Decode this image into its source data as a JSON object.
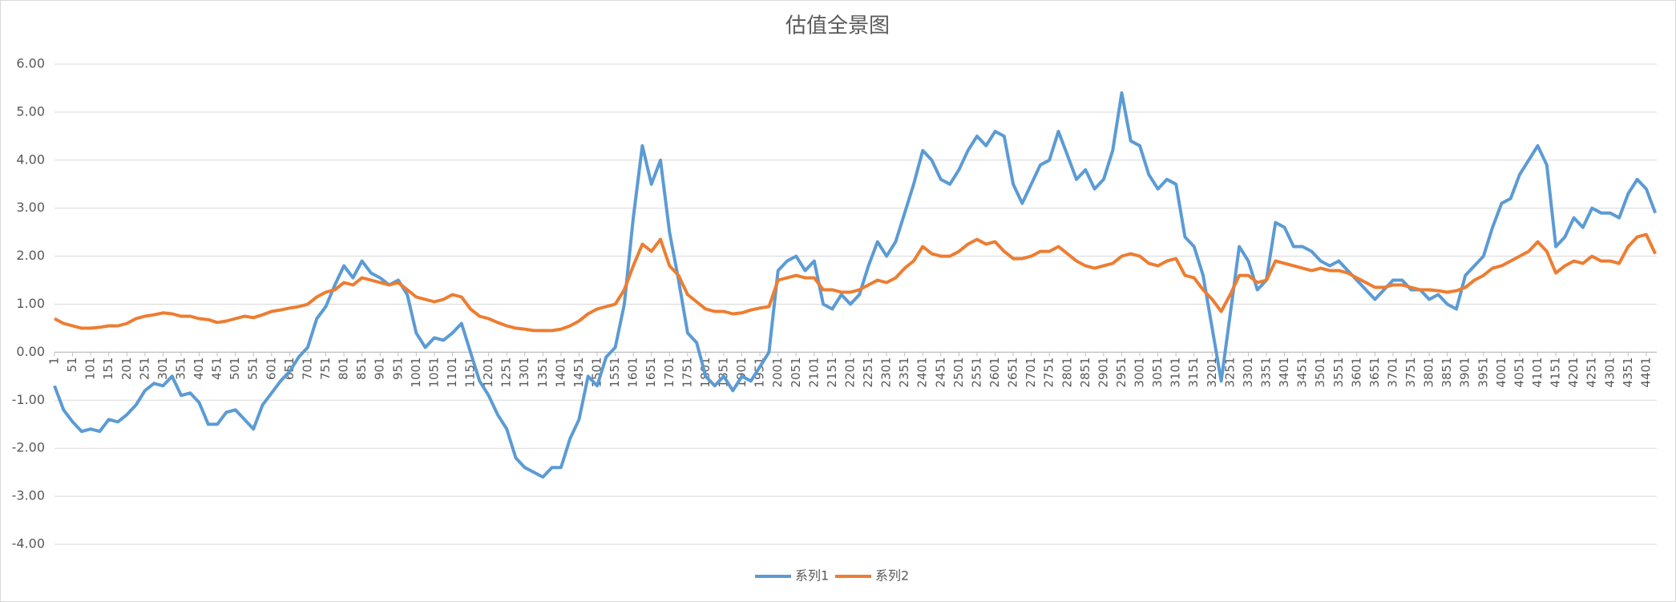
{
  "chart_data": {
    "type": "line",
    "title": "估值全景图",
    "x": [
      1,
      26,
      51,
      76,
      101,
      126,
      151,
      176,
      201,
      226,
      251,
      276,
      301,
      326,
      351,
      376,
      401,
      426,
      451,
      476,
      501,
      526,
      551,
      576,
      601,
      626,
      651,
      676,
      701,
      726,
      751,
      776,
      801,
      826,
      851,
      876,
      901,
      926,
      951,
      976,
      1001,
      1026,
      1051,
      1076,
      1101,
      1126,
      1151,
      1176,
      1201,
      1226,
      1251,
      1276,
      1301,
      1326,
      1351,
      1376,
      1401,
      1426,
      1451,
      1476,
      1501,
      1526,
      1551,
      1576,
      1601,
      1626,
      1651,
      1676,
      1701,
      1726,
      1751,
      1776,
      1801,
      1826,
      1851,
      1876,
      1901,
      1926,
      1951,
      1976,
      2001,
      2026,
      2051,
      2076,
      2101,
      2126,
      2151,
      2176,
      2201,
      2226,
      2251,
      2276,
      2301,
      2326,
      2351,
      2376,
      2401,
      2426,
      2451,
      2476,
      2501,
      2526,
      2551,
      2576,
      2601,
      2626,
      2651,
      2676,
      2701,
      2726,
      2751,
      2776,
      2801,
      2826,
      2851,
      2876,
      2901,
      2926,
      2951,
      2976,
      3001,
      3026,
      3051,
      3076,
      3101,
      3126,
      3151,
      3176,
      3201,
      3226,
      3251,
      3276,
      3301,
      3326,
      3351,
      3376,
      3401,
      3426,
      3451,
      3476,
      3501,
      3526,
      3551,
      3576,
      3601,
      3626,
      3651,
      3676,
      3701,
      3726,
      3751,
      3776,
      3801,
      3826,
      3851,
      3876,
      3901,
      3926,
      3951,
      3976,
      4001,
      4026,
      4051,
      4076,
      4101,
      4126,
      4151,
      4176,
      4201,
      4226,
      4251,
      4276,
      4301,
      4326,
      4351,
      4376,
      4401,
      4426
    ],
    "series": [
      {
        "name": "系列1",
        "color": "#5b9bd5",
        "values": [
          -0.7,
          -1.2,
          -1.45,
          -1.65,
          -1.6,
          -1.65,
          -1.4,
          -1.45,
          -1.3,
          -1.1,
          -0.8,
          -0.65,
          -0.7,
          -0.5,
          -0.9,
          -0.85,
          -1.05,
          -1.5,
          -1.5,
          -1.25,
          -1.2,
          -1.4,
          -1.6,
          -1.1,
          -0.85,
          -0.6,
          -0.4,
          -0.1,
          0.1,
          0.7,
          0.95,
          1.4,
          1.8,
          1.55,
          1.9,
          1.65,
          1.55,
          1.4,
          1.5,
          1.2,
          0.4,
          0.1,
          0.3,
          0.25,
          0.4,
          0.6,
          0.0,
          -0.6,
          -0.9,
          -1.3,
          -1.6,
          -2.2,
          -2.4,
          -2.5,
          -2.6,
          -2.4,
          -2.4,
          -1.8,
          -1.4,
          -0.5,
          -0.7,
          -0.1,
          0.1,
          1.0,
          2.8,
          4.3,
          3.5,
          4.0,
          2.5,
          1.5,
          0.4,
          0.2,
          -0.5,
          -0.7,
          -0.5,
          -0.8,
          -0.5,
          -0.6,
          -0.3,
          0.0,
          1.7,
          1.9,
          2.0,
          1.7,
          1.9,
          1.0,
          0.9,
          1.2,
          1.0,
          1.2,
          1.8,
          2.3,
          2.0,
          2.3,
          2.9,
          3.5,
          4.2,
          4.0,
          3.6,
          3.5,
          3.8,
          4.2,
          4.5,
          4.3,
          4.6,
          4.5,
          3.5,
          3.1,
          3.5,
          3.9,
          4.0,
          4.6,
          4.1,
          3.6,
          3.8,
          3.4,
          3.6,
          4.2,
          5.4,
          4.4,
          4.3,
          3.7,
          3.4,
          3.6,
          3.5,
          2.4,
          2.2,
          1.6,
          0.5,
          -0.6,
          0.8,
          2.2,
          1.9,
          1.3,
          1.5,
          2.7,
          2.6,
          2.2,
          2.2,
          2.1,
          1.9,
          1.8,
          1.9,
          1.7,
          1.5,
          1.3,
          1.1,
          1.3,
          1.5,
          1.5,
          1.3,
          1.3,
          1.1,
          1.2,
          1.0,
          0.9,
          1.6,
          1.8,
          2.0,
          2.6,
          3.1,
          3.2,
          3.7,
          4.0,
          4.3,
          3.9,
          2.2,
          2.4,
          2.8,
          2.6,
          3.0,
          2.9,
          2.9,
          2.8,
          3.3,
          3.6,
          3.4,
          2.9
        ]
      },
      {
        "name": "系列2",
        "color": "#ed7d31",
        "values": [
          0.7,
          0.6,
          0.55,
          0.5,
          0.5,
          0.52,
          0.55,
          0.55,
          0.6,
          0.7,
          0.75,
          0.78,
          0.82,
          0.8,
          0.75,
          0.75,
          0.7,
          0.68,
          0.62,
          0.65,
          0.7,
          0.75,
          0.72,
          0.78,
          0.85,
          0.88,
          0.92,
          0.95,
          1.0,
          1.15,
          1.25,
          1.3,
          1.45,
          1.4,
          1.55,
          1.5,
          1.45,
          1.4,
          1.45,
          1.3,
          1.15,
          1.1,
          1.05,
          1.1,
          1.2,
          1.15,
          0.9,
          0.75,
          0.7,
          0.62,
          0.55,
          0.5,
          0.48,
          0.45,
          0.45,
          0.45,
          0.48,
          0.55,
          0.65,
          0.8,
          0.9,
          0.95,
          1.0,
          1.3,
          1.8,
          2.25,
          2.1,
          2.35,
          1.8,
          1.6,
          1.2,
          1.05,
          0.9,
          0.85,
          0.85,
          0.8,
          0.82,
          0.88,
          0.92,
          0.95,
          1.5,
          1.55,
          1.6,
          1.55,
          1.55,
          1.3,
          1.3,
          1.25,
          1.25,
          1.3,
          1.4,
          1.5,
          1.45,
          1.55,
          1.75,
          1.9,
          2.2,
          2.05,
          2.0,
          2.0,
          2.1,
          2.25,
          2.35,
          2.25,
          2.3,
          2.1,
          1.95,
          1.95,
          2.0,
          2.1,
          2.1,
          2.2,
          2.05,
          1.9,
          1.8,
          1.75,
          1.8,
          1.85,
          2.0,
          2.05,
          2.0,
          1.85,
          1.8,
          1.9,
          1.95,
          1.6,
          1.55,
          1.3,
          1.1,
          0.85,
          1.2,
          1.6,
          1.6,
          1.45,
          1.5,
          1.9,
          1.85,
          1.8,
          1.75,
          1.7,
          1.75,
          1.7,
          1.7,
          1.65,
          1.55,
          1.45,
          1.35,
          1.35,
          1.4,
          1.4,
          1.35,
          1.3,
          1.3,
          1.28,
          1.25,
          1.28,
          1.35,
          1.5,
          1.6,
          1.75,
          1.8,
          1.9,
          2.0,
          2.1,
          2.3,
          2.1,
          1.65,
          1.8,
          1.9,
          1.85,
          2.0,
          1.9,
          1.9,
          1.85,
          2.2,
          2.4,
          2.45,
          2.05
        ]
      }
    ],
    "xlim": [
      1,
      4430
    ],
    "xticks": [
      1,
      51,
      101,
      151,
      201,
      251,
      301,
      351,
      401,
      451,
      501,
      551,
      601,
      651,
      701,
      751,
      801,
      851,
      901,
      951,
      1001,
      1051,
      1101,
      1151,
      1201,
      1251,
      1301,
      1351,
      1401,
      1451,
      1501,
      1551,
      1601,
      1651,
      1701,
      1751,
      1801,
      1851,
      1901,
      1951,
      2001,
      2051,
      2101,
      2151,
      2201,
      2251,
      2301,
      2351,
      2401,
      2451,
      2501,
      2551,
      2601,
      2651,
      2701,
      2751,
      2801,
      2851,
      2901,
      2951,
      3001,
      3051,
      3101,
      3151,
      3201,
      3251,
      3301,
      3351,
      3401,
      3451,
      3501,
      3551,
      3601,
      3651,
      3701,
      3751,
      3801,
      3851,
      3901,
      3951,
      4001,
      4051,
      4101,
      4151,
      4201,
      4251,
      4301,
      4351,
      4401
    ],
    "ylim": [
      -4,
      6
    ],
    "yticks": [
      {
        "value": -4,
        "label": "-4.00"
      },
      {
        "value": -3,
        "label": "-3.00"
      },
      {
        "value": -2,
        "label": "-2.00"
      },
      {
        "value": -1,
        "label": "-1.00"
      },
      {
        "value": 0,
        "label": "0.00"
      },
      {
        "value": 1,
        "label": "1.00"
      },
      {
        "value": 2,
        "label": "2.00"
      },
      {
        "value": 3,
        "label": "3.00"
      },
      {
        "value": 4,
        "label": "4.00"
      },
      {
        "value": 5,
        "label": "5.00"
      },
      {
        "value": 6,
        "label": "6.00"
      }
    ],
    "grid": true,
    "legend": "bottom"
  }
}
